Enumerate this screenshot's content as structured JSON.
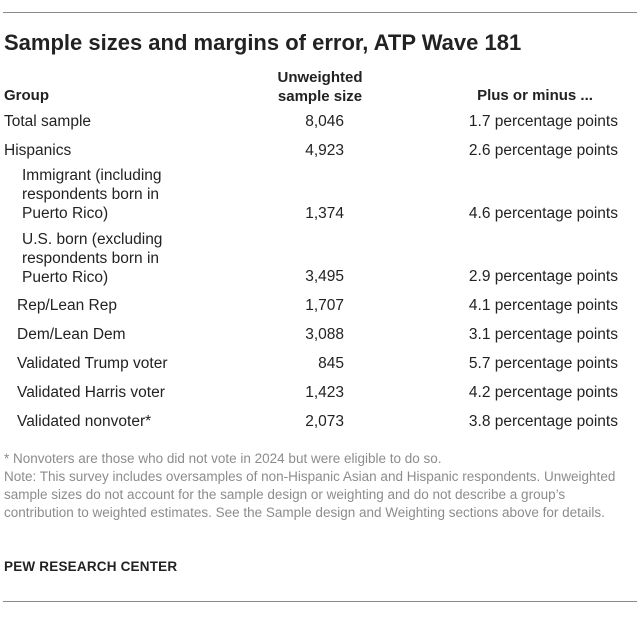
{
  "title": "Sample sizes and margins of error, ATP Wave 181",
  "columns": {
    "group": "Group",
    "sample": "Unweighted sample size",
    "moe": "Plus or minus ..."
  },
  "rows": [
    {
      "label": "Total sample",
      "n": "8,046",
      "moe": "1.7 percentage points"
    },
    {
      "label": "Hispanics",
      "n": "4,923",
      "moe": "2.6 percentage points"
    },
    {
      "label": "Immigrant (including respondents born in Puerto Rico)",
      "n": "1,374",
      "moe": "4.6 percentage points"
    },
    {
      "label": "U.S. born (excluding respondents born in Puerto Rico)",
      "n": "3,495",
      "moe": "2.9 percentage points"
    },
    {
      "label": "Rep/Lean Rep",
      "n": "1,707",
      "moe": "4.1 percentage points"
    },
    {
      "label": "Dem/Lean Dem",
      "n": "3,088",
      "moe": "3.1 percentage points"
    },
    {
      "label": "Validated Trump voter",
      "n": "845",
      "moe": "5.7 percentage points"
    },
    {
      "label": "Validated Harris voter",
      "n": "1,423",
      "moe": "4.2 percentage points"
    },
    {
      "label": "Validated nonvoter*",
      "n": "2,073",
      "moe": "3.8 percentage points"
    }
  ],
  "footnote": "* Nonvoters are those who did not vote in 2024 but were eligible to do so.",
  "note": "Note: This survey includes oversamples of non-Hispanic Asian and Hispanic respondents. Unweighted sample sizes do not account for the sample design or weighting and do not describe a group’s contribution to weighted estimates. See the Sample design and Weighting sections above for details.",
  "source": "PEW RESEARCH CENTER"
}
